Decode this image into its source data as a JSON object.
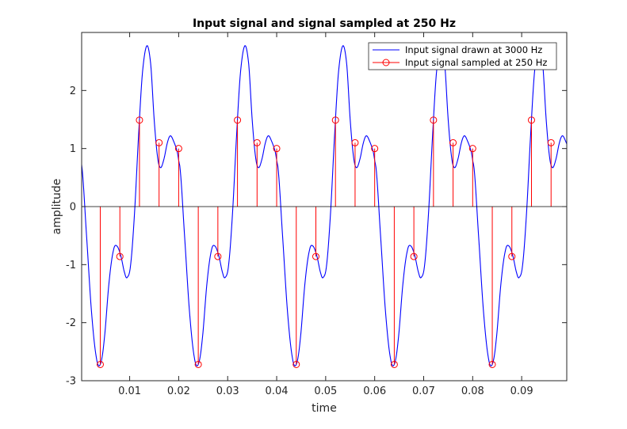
{
  "chart_data": {
    "type": "line",
    "title": "Input signal and signal sampled at 250 Hz",
    "xlabel": "time",
    "ylabel": "amplitude",
    "xlim": [
      0.0002,
      0.0992
    ],
    "ylim": [
      -3,
      3
    ],
    "xticks": [
      0.01,
      0.02,
      0.03,
      0.04,
      0.05,
      0.06,
      0.07,
      0.08,
      0.09
    ],
    "xtick_labels": [
      "0.01",
      "0.02",
      "0.03",
      "0.04",
      "0.05",
      "0.06",
      "0.07",
      "0.08",
      "0.09"
    ],
    "yticks": [
      -3,
      -2,
      -1,
      0,
      1,
      2
    ],
    "ytick_labels": [
      "-3",
      "-2",
      "-1",
      "0",
      "1",
      "2"
    ],
    "grid": false,
    "legend_position": "top-right",
    "series": [
      {
        "name": "Input signal drawn at 3000 Hz",
        "kind": "line",
        "color": "#0000ff",
        "period": 0.02,
        "sample_rate_hz": 3000,
        "waveform_one_period": [
          [
            0.0002,
            0.72
          ],
          [
            0.0012,
            -0.5
          ],
          [
            0.0022,
            -1.8
          ],
          [
            0.0032,
            -2.6
          ],
          [
            0.004,
            -2.72
          ],
          [
            0.0048,
            -2.3
          ],
          [
            0.0058,
            -1.3
          ],
          [
            0.0067,
            -0.75
          ],
          [
            0.0074,
            -0.68
          ],
          [
            0.0082,
            -0.85
          ],
          [
            0.009,
            -1.15
          ],
          [
            0.0095,
            -1.22
          ],
          [
            0.0102,
            -1.0
          ],
          [
            0.011,
            -0.1
          ],
          [
            0.0118,
            1.2
          ],
          [
            0.0126,
            2.3
          ],
          [
            0.0135,
            2.77
          ],
          [
            0.0143,
            2.45
          ],
          [
            0.015,
            1.5
          ],
          [
            0.0157,
            0.85
          ],
          [
            0.0163,
            0.67
          ],
          [
            0.017,
            0.82
          ],
          [
            0.0177,
            1.1
          ],
          [
            0.0183,
            1.22
          ],
          [
            0.019,
            1.12
          ],
          [
            0.0197,
            0.95
          ],
          [
            0.0202,
            0.72
          ]
        ]
      },
      {
        "name": "Input signal sampled at 250 Hz",
        "kind": "stem",
        "color": "#ff0000",
        "x": [
          0.004,
          0.008,
          0.012,
          0.016,
          0.02,
          0.024,
          0.028,
          0.032,
          0.036,
          0.04,
          0.044,
          0.048,
          0.052,
          0.056,
          0.06,
          0.064,
          0.068,
          0.072,
          0.076,
          0.08,
          0.084,
          0.088,
          0.092,
          0.096
        ],
        "y": [
          -2.72,
          -0.86,
          1.49,
          1.1,
          1.0,
          -2.72,
          -0.86,
          1.49,
          1.1,
          1.0,
          -2.72,
          -0.86,
          1.49,
          1.1,
          1.0,
          -2.72,
          -0.86,
          1.49,
          1.1,
          1.0,
          -2.72,
          -0.86,
          1.49,
          1.1
        ]
      }
    ]
  }
}
